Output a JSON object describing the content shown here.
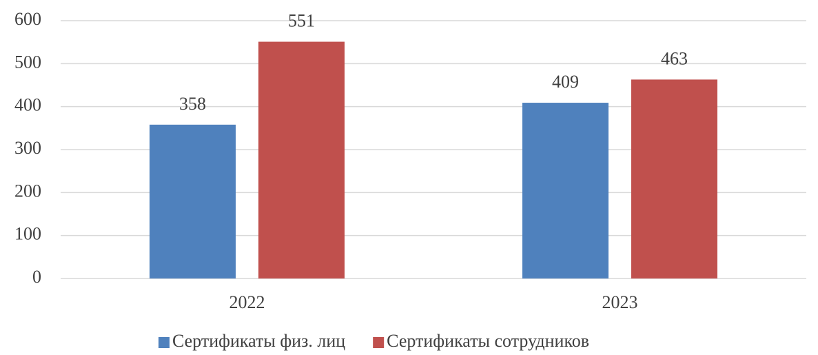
{
  "chart_data": {
    "type": "bar",
    "categories": [
      "2022",
      "2023"
    ],
    "series": [
      {
        "name": "Сертификаты физ. лиц",
        "color": "#4f81bd",
        "values": [
          358,
          409
        ]
      },
      {
        "name": "Сертификаты сотрудников",
        "color": "#c0504d",
        "values": [
          551,
          463
        ]
      }
    ],
    "ylim": [
      0,
      600
    ],
    "yticks": [
      0,
      100,
      200,
      300,
      400,
      500,
      600
    ],
    "grid": true,
    "legend": "bottom"
  }
}
